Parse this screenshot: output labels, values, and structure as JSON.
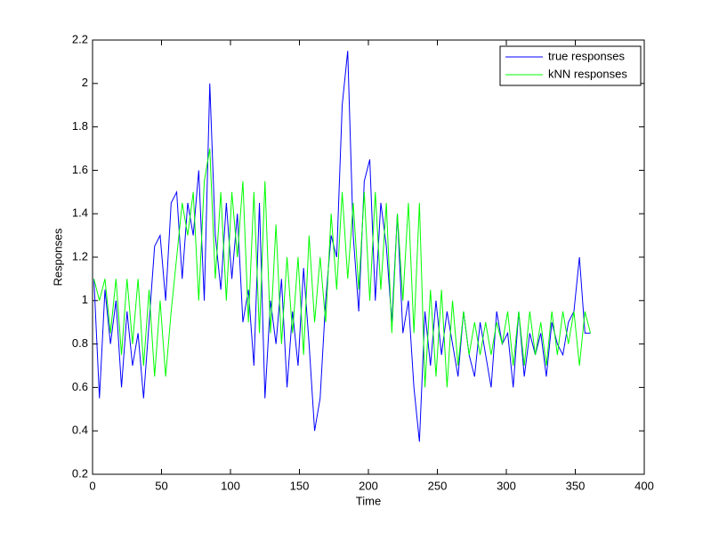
{
  "chart_data": {
    "type": "line",
    "xlabel": "Time",
    "ylabel": "Responses",
    "x": [
      1,
      5,
      9,
      13,
      17,
      21,
      25,
      29,
      33,
      37,
      41,
      45,
      49,
      53,
      57,
      61,
      65,
      69,
      73,
      77,
      81,
      85,
      89,
      93,
      97,
      101,
      105,
      109,
      113,
      117,
      121,
      125,
      129,
      133,
      137,
      141,
      145,
      149,
      153,
      157,
      161,
      165,
      169,
      173,
      177,
      181,
      185,
      189,
      193,
      197,
      201,
      205,
      209,
      213,
      217,
      221,
      225,
      229,
      233,
      237,
      241,
      245,
      249,
      253,
      257,
      261,
      265,
      269,
      273,
      277,
      281,
      285,
      289,
      293,
      297,
      301,
      305,
      309,
      313,
      317,
      321,
      325,
      329,
      333,
      337,
      341,
      345,
      349,
      353,
      357,
      361
    ],
    "series": [
      {
        "name": "true responses",
        "color": "#0000ff",
        "values": [
          1.1,
          0.55,
          1.05,
          0.8,
          1.0,
          0.6,
          0.95,
          0.7,
          0.85,
          0.55,
          0.9,
          1.25,
          1.3,
          1.0,
          1.45,
          1.5,
          1.1,
          1.45,
          1.3,
          1.6,
          1.0,
          2.0,
          1.3,
          1.05,
          1.45,
          1.1,
          1.4,
          0.9,
          1.05,
          0.7,
          1.45,
          0.55,
          1.0,
          0.8,
          1.1,
          0.6,
          0.95,
          0.7,
          1.15,
          0.8,
          0.4,
          0.55,
          1.0,
          1.3,
          1.2,
          1.9,
          2.15,
          1.3,
          0.95,
          1.55,
          1.65,
          1.0,
          1.45,
          1.25,
          0.9,
          1.4,
          0.85,
          1.0,
          0.6,
          0.35,
          0.95,
          0.7,
          1.0,
          0.75,
          0.95,
          0.8,
          0.65,
          0.95,
          0.75,
          0.65,
          0.9,
          0.75,
          0.6,
          0.95,
          0.8,
          0.85,
          0.6,
          0.95,
          0.65,
          0.85,
          0.75,
          0.85,
          0.65,
          0.9,
          0.8,
          0.75,
          0.9,
          0.95,
          1.2,
          0.85,
          0.85
        ]
      },
      {
        "name": "kNN responses",
        "color": "#00ff00",
        "values": [
          1.1,
          1.0,
          1.1,
          0.85,
          1.1,
          0.75,
          1.1,
          0.8,
          1.1,
          0.7,
          1.05,
          0.65,
          1.0,
          0.65,
          0.95,
          1.2,
          1.45,
          1.3,
          1.5,
          1.0,
          1.55,
          1.7,
          1.1,
          1.5,
          1.0,
          1.5,
          1.2,
          1.55,
          0.9,
          1.5,
          0.85,
          1.55,
          0.85,
          1.35,
          0.8,
          1.2,
          0.85,
          1.2,
          0.75,
          1.3,
          0.9,
          1.2,
          0.9,
          1.4,
          1.05,
          1.5,
          1.1,
          1.45,
          1.05,
          1.5,
          1.0,
          1.5,
          1.05,
          1.45,
          0.85,
          1.4,
          1.0,
          1.45,
          0.85,
          1.45,
          0.6,
          1.05,
          0.65,
          1.05,
          0.6,
          1.0,
          0.7,
          0.95,
          0.75,
          0.9,
          0.75,
          0.9,
          0.75,
          0.9,
          0.8,
          0.95,
          0.7,
          0.95,
          0.7,
          0.95,
          0.75,
          0.9,
          0.7,
          0.95,
          0.75,
          0.95,
          0.8,
          0.95,
          0.7,
          0.95,
          0.85
        ]
      }
    ],
    "xlim": [
      0,
      400
    ],
    "xticks": [
      0,
      50,
      100,
      150,
      200,
      250,
      300,
      350,
      400
    ],
    "ylim": [
      0.2,
      2.2
    ],
    "yticks": [
      0.2,
      0.4,
      0.6,
      0.8,
      1,
      1.2,
      1.4,
      1.6,
      1.8,
      2,
      2.2
    ],
    "legend": "northeast"
  }
}
